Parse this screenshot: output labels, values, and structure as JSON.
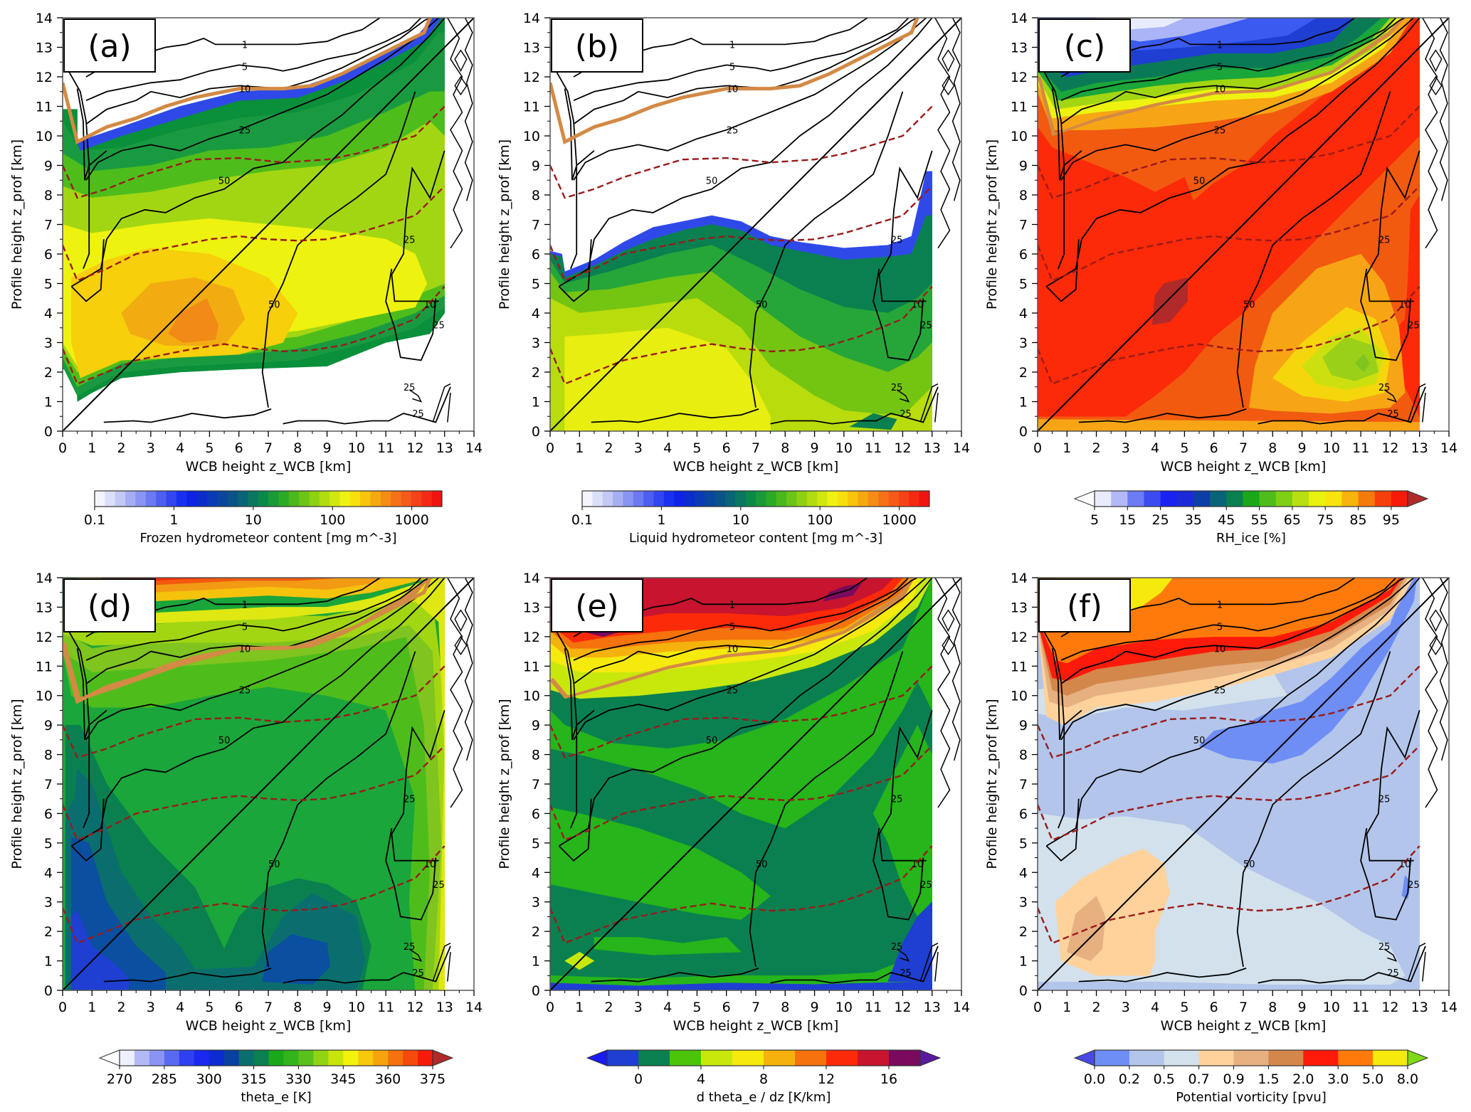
{
  "chart_data": [
    {
      "panel_label": "(a)",
      "type": "heatmap",
      "title": "",
      "xlabel": "WCB height z_WCB [km]",
      "ylabel": "Profile height z_prof [km]",
      "xlim": [
        0,
        14
      ],
      "ylim": [
        0,
        14
      ],
      "xticks": [
        0,
        1,
        2,
        3,
        4,
        5,
        6,
        7,
        8,
        9,
        10,
        11,
        12,
        13,
        14
      ],
      "yticks": [
        0,
        1,
        2,
        3,
        4,
        5,
        6,
        7,
        8,
        9,
        10,
        11,
        12,
        13,
        14
      ],
      "colorbar": {
        "label": "Frozen hydrometeor content [mg m^-3]",
        "scale": "log",
        "ticks": [
          "0.1",
          "1",
          "10",
          "100",
          "1000"
        ],
        "extend": "neither"
      },
      "field_summary": "Frozen hydrometeor content; max ~300-600 mg m^-3 near z_WCB 4-5 km, z_prof 3.5-4 km; nonzero between ~1-2 km and tropopause (~10-13.5 km); data only for z_WCB 0-13 km"
    },
    {
      "panel_label": "(b)",
      "type": "heatmap",
      "xlabel": "WCB height z_WCB [km]",
      "ylabel": "Profile height z_prof [km]",
      "xlim": [
        0,
        14
      ],
      "ylim": [
        0,
        14
      ],
      "xticks": [
        0,
        1,
        2,
        3,
        4,
        5,
        6,
        7,
        8,
        9,
        10,
        11,
        12,
        13,
        14
      ],
      "yticks": [
        0,
        1,
        2,
        3,
        4,
        5,
        6,
        7,
        8,
        9,
        10,
        11,
        12,
        13,
        14
      ],
      "colorbar": {
        "label": "Liquid hydrometeor content [mg m^-3]",
        "scale": "log",
        "ticks": [
          "0.1",
          "1",
          "10",
          "100",
          "1000"
        ],
        "extend": "neither"
      },
      "field_summary": "Liquid hydrometeor content; ~100-200 mg m^-3 near surface at z_WCB 1-6 km; upper edge ~5-7 km, up to ~9 km at z_WCB 13"
    },
    {
      "panel_label": "(c)",
      "type": "heatmap",
      "xlabel": "WCB height z_WCB [km]",
      "ylabel": "Profile height z_prof [km]",
      "xlim": [
        0,
        14
      ],
      "ylim": [
        0,
        14
      ],
      "xticks": [
        0,
        1,
        2,
        3,
        4,
        5,
        6,
        7,
        8,
        9,
        10,
        11,
        12,
        13,
        14
      ],
      "yticks": [
        0,
        1,
        2,
        3,
        4,
        5,
        6,
        7,
        8,
        9,
        10,
        11,
        12,
        13,
        14
      ],
      "colorbar": {
        "label": "RH_ice [%]",
        "ticks": [
          "5",
          "15",
          "25",
          "35",
          "45",
          "55",
          "65",
          "75",
          "85",
          "95"
        ],
        "levels": [
          5,
          10,
          15,
          20,
          25,
          30,
          35,
          40,
          45,
          50,
          55,
          60,
          65,
          70,
          75,
          80,
          85,
          90,
          95,
          100
        ],
        "extend": "both"
      },
      "field_summary": "RH_ice >95% along diagonal z_prof=z_WCB; >100% patch near (4.5, 4.5); minimum ~55-60% near (11, 2.5); dry (<20%) above 12.5 km"
    },
    {
      "panel_label": "(d)",
      "type": "heatmap",
      "xlabel": "WCB height z_WCB [km]",
      "ylabel": "Profile height z_prof [km]",
      "xlim": [
        0,
        14
      ],
      "ylim": [
        0,
        14
      ],
      "xticks": [
        0,
        1,
        2,
        3,
        4,
        5,
        6,
        7,
        8,
        9,
        10,
        11,
        12,
        13,
        14
      ],
      "yticks": [
        0,
        1,
        2,
        3,
        4,
        5,
        6,
        7,
        8,
        9,
        10,
        11,
        12,
        13,
        14
      ],
      "colorbar": {
        "label": "theta_e [K]",
        "ticks": [
          "270",
          "285",
          "300",
          "315",
          "330",
          "345",
          "360",
          "375"
        ],
        "levels": [
          270,
          275,
          280,
          285,
          290,
          295,
          300,
          305,
          310,
          315,
          320,
          325,
          330,
          335,
          340,
          345,
          350,
          355,
          360,
          365,
          370,
          375
        ],
        "extend": "both"
      },
      "field_summary": "Equivalent potential temperature; ~300-310 K near surface at low z_WCB; ~320-330 K mid levels; >360 K above 13 km"
    },
    {
      "panel_label": "(e)",
      "type": "heatmap",
      "xlabel": "WCB height z_WCB [km]",
      "ylabel": "Profile height z_prof [km]",
      "xlim": [
        0,
        14
      ],
      "ylim": [
        0,
        14
      ],
      "xticks": [
        0,
        1,
        2,
        3,
        4,
        5,
        6,
        7,
        8,
        9,
        10,
        11,
        12,
        13,
        14
      ],
      "yticks": [
        0,
        1,
        2,
        3,
        4,
        5,
        6,
        7,
        8,
        9,
        10,
        11,
        12,
        13,
        14
      ],
      "colorbar": {
        "label": "d theta_e / dz [K/km]",
        "ticks": [
          "0",
          "4",
          "8",
          "12",
          "16"
        ],
        "levels": [
          -2,
          0,
          2,
          4,
          6,
          8,
          10,
          12,
          14,
          16,
          18
        ],
        "extend": "both"
      },
      "field_summary": "Vertical gradient of theta_e; 0-2 K/km in troposphere, 2-4 K/km band; >14 K/km above tropopause (~12-14 km); <0 near surface"
    },
    {
      "panel_label": "(f)",
      "type": "heatmap",
      "xlabel": "WCB height z_WCB [km]",
      "ylabel": "Profile height z_prof [km]",
      "xlim": [
        0,
        14
      ],
      "ylim": [
        0,
        14
      ],
      "xticks": [
        0,
        1,
        2,
        3,
        4,
        5,
        6,
        7,
        8,
        9,
        10,
        11,
        12,
        13,
        14
      ],
      "yticks": [
        0,
        1,
        2,
        3,
        4,
        5,
        6,
        7,
        8,
        9,
        10,
        11,
        12,
        13,
        14
      ],
      "colorbar": {
        "label": "Potential vorticity [pvu]",
        "ticks": [
          "0.0",
          "0.2",
          "0.5",
          "0.7",
          "0.9",
          "1.5",
          "2.0",
          "3.0",
          "5.0",
          "8.0"
        ],
        "levels": [
          0.0,
          0.2,
          0.5,
          0.7,
          0.9,
          1.5,
          2.0,
          3.0,
          5.0,
          8.0
        ],
        "extend": "both"
      },
      "field_summary": "PV 0.2-0.5 pvu in most of troposphere; <0.2 pvu along diagonal 7-13 km; 0.7-1.5 pvu near (1-5, 0.5-4.5); >2 pvu above ~10-12 km"
    }
  ],
  "overlay": {
    "count_contours_percent": [
      "1",
      "5",
      "10",
      "25",
      "50"
    ],
    "dashed_lines": "dark red dashed isolines (percentile/pressure-like reference levels)",
    "diagonal": "z_prof = z_WCB",
    "tropopause_line": "2 pvu (orange thick line)"
  },
  "colors": {
    "tropopause": "#d38a45",
    "dashed": "#9a1a1a",
    "contour": "#000000"
  }
}
